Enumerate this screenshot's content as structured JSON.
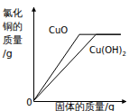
{
  "chart_data": {
    "type": "line",
    "x_label": "固体的质量/g",
    "y_label": "氯化铜的质量/g",
    "x": [
      0,
      50,
      68,
      95
    ],
    "series": [
      {
        "name": "CuO",
        "color": "#000000",
        "values": [
          0,
          71,
          71,
          71
        ]
      },
      {
        "name": "Cu(OH)2",
        "color": "#000000",
        "values": [
          0,
          52,
          71,
          71
        ]
      }
    ],
    "xlim": [
      0,
      100
    ],
    "ylim": [
      0,
      100
    ],
    "xticks": [
      0
    ],
    "yticks": [],
    "tick_labels": "x",
    "grid": false
  }
}
